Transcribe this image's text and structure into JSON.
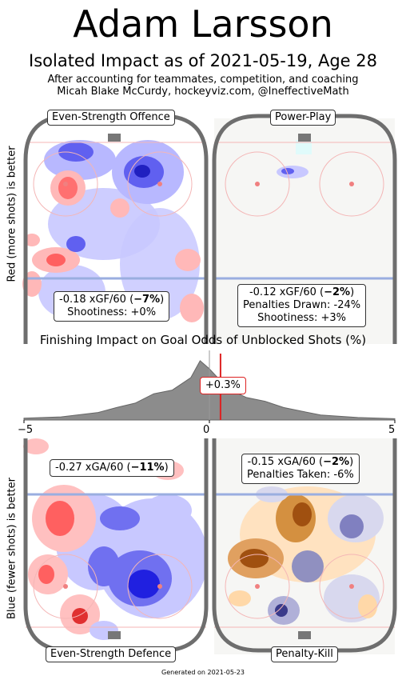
{
  "header": {
    "title": "Adam Larsson",
    "subtitle": "Isolated Impact as of 2021-05-19, Age 28",
    "note_line1": "After accounting for teammates, competition, and coaching",
    "note_line2": "Micah Blake McCurdy, hockeyviz.com, @IneffectiveMath"
  },
  "axis_labels": {
    "top": "Red (more shots) is better",
    "bottom": "Blue (fewer shots) is better"
  },
  "panels": {
    "ev_offence": {
      "label": "Even-Strength Offence",
      "line1_prefix": "-0.18 xGF/60 (",
      "line1_pct": "−7%",
      "line1_suffix": ")",
      "line2": "Shootiness: +0%"
    },
    "power_play": {
      "label": "Power-Play",
      "line1_prefix": "-0.12 xGF/60 (",
      "line1_pct": "−2%",
      "line1_suffix": ")",
      "line2": "Penalties Drawn: -24%",
      "line3": "Shootiness: +3%"
    },
    "ev_defence": {
      "label": "Even-Strength Defence",
      "line1_prefix": "-0.27 xGA/60 (",
      "line1_pct": "−11%",
      "line1_suffix": ")"
    },
    "penalty_kill": {
      "label": "Penalty-Kill",
      "line1_prefix": "-0.15 xGA/60 (",
      "line1_pct": "−2%",
      "line1_suffix": ")",
      "line2": "Penalties Taken: -6%"
    }
  },
  "chart_data": {
    "type": "area",
    "title": "Finishing Impact on Goal Odds of Unblocked Shots (%)",
    "xlim": [
      -5,
      5
    ],
    "x_ticks": [
      "−5",
      "0",
      "5"
    ],
    "marker_value": 0.3,
    "marker_label": "+0.3%",
    "marker_color": "#dd2222",
    "distribution": {
      "x": [
        -5,
        -4,
        -3,
        -2.5,
        -2,
        -1.5,
        -1,
        -0.5,
        -0.25,
        0,
        0.5,
        1,
        1.5,
        2,
        2.5,
        3,
        4,
        5
      ],
      "density": [
        0.03,
        0.05,
        0.12,
        0.2,
        0.27,
        0.42,
        0.48,
        0.68,
        0.95,
        0.82,
        0.5,
        0.36,
        0.3,
        0.2,
        0.14,
        0.08,
        0.04,
        0.02
      ]
    }
  },
  "footer": "Generated on 2021-05-23",
  "colors": {
    "offence_more": "#e83a3a",
    "offence_fewer": "#3a3ae8",
    "pk_more": "#c86a10",
    "pk_fewer": "#3a3a8a",
    "rink_board": "#6e6e6e",
    "blue_line": "#9aaee0"
  }
}
